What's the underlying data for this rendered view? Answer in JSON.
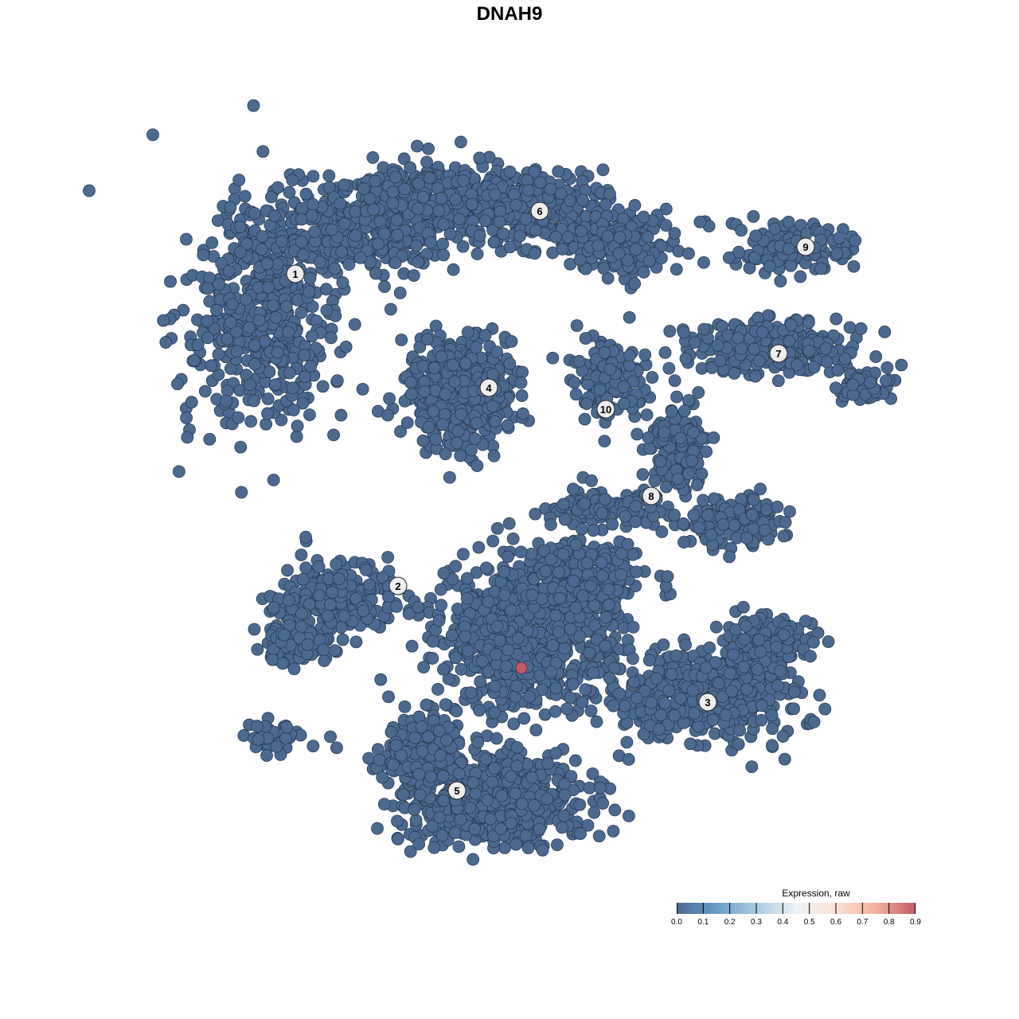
{
  "title": "DNAH9",
  "chart_data": {
    "type": "scatter",
    "title": "DNAH9",
    "xlabel": "",
    "ylabel": "",
    "grid": false,
    "axes_visible": false,
    "point_color_default": "#4c6a90",
    "point_edge_color": "#263a52",
    "cluster_labels": [
      "1",
      "2",
      "3",
      "4",
      "5",
      "6",
      "7",
      "8",
      "9",
      "10"
    ],
    "highlighted_points": [
      {
        "expression": 0.9,
        "color": "#c45a66"
      }
    ],
    "default_expression": 0.0,
    "colorbar": {
      "title": "Expression, raw",
      "range": [
        0.0,
        0.9
      ],
      "ticks": [
        "0.0",
        "0.1",
        "0.2",
        "0.3",
        "0.4",
        "0.5",
        "0.6",
        "0.7",
        "0.8",
        "0.9"
      ],
      "colors": [
        "#4a6a94",
        "#6a9cc8",
        "#a6cce0",
        "#eef2f6",
        "#fbe2d6",
        "#f0b39a",
        "#c45a66"
      ],
      "placement": "bottom-right"
    }
  }
}
